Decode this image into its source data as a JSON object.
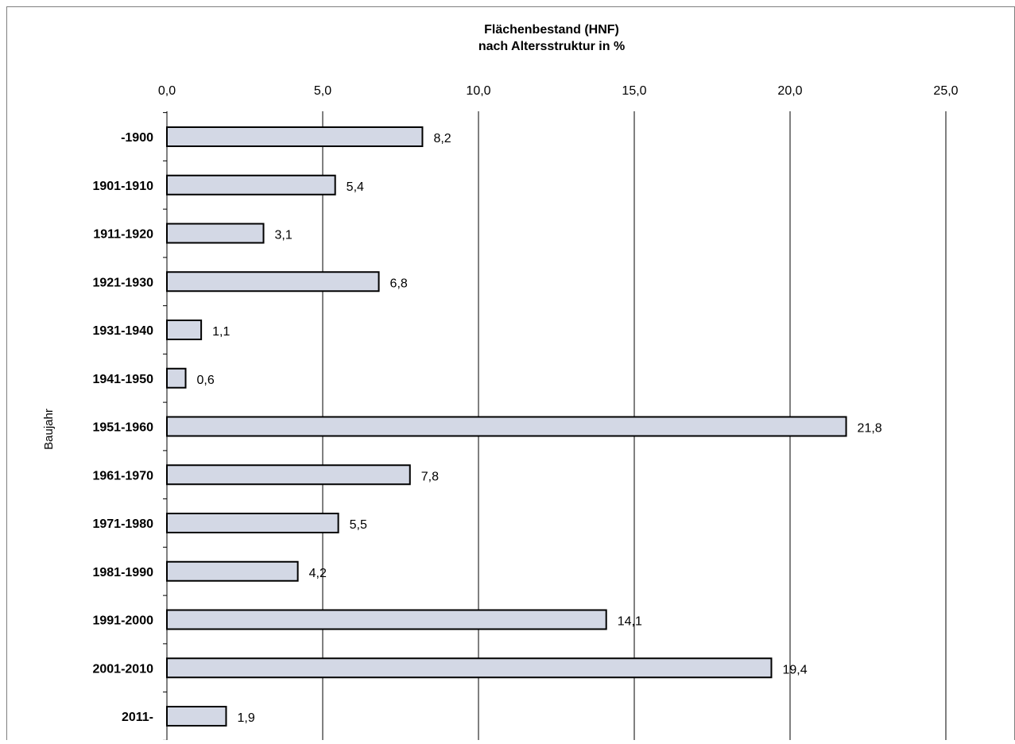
{
  "chart_data": {
    "type": "bar",
    "orientation": "horizontal",
    "title": [
      "Flächenbestand (HNF)",
      "nach Altersstruktur in %"
    ],
    "xlabel": "",
    "ylabel": "Baujahr",
    "xlim": [
      0,
      25
    ],
    "x_ticks": [
      0,
      5,
      10,
      15,
      20,
      25
    ],
    "x_tick_labels": [
      "0,0",
      "5,0",
      "10,0",
      "15,0",
      "20,0",
      "25,0"
    ],
    "grid": "vertical",
    "categories": [
      "-1900",
      "1901-1910",
      "1911-1920",
      "1921-1930",
      "1931-1940",
      "1941-1950",
      "1951-1960",
      "1961-1970",
      "1971-1980",
      "1981-1990",
      "1991-2000",
      "2001-2010",
      "2011-"
    ],
    "values": [
      8.2,
      5.4,
      3.1,
      6.8,
      1.1,
      0.6,
      21.8,
      7.8,
      5.5,
      4.2,
      14.1,
      19.4,
      1.9
    ],
    "value_labels": [
      "8,2",
      "5,4",
      "3,1",
      "6,8",
      "1,1",
      "0,6",
      "21,8",
      "7,8",
      "5,5",
      "4,2",
      "14,1",
      "19,4",
      "1,9"
    ],
    "colors": {
      "bar_fill": "#d3d8e5",
      "bar_stroke": "#000000",
      "grid": "#000000",
      "frame": "#7f7f7f"
    }
  }
}
